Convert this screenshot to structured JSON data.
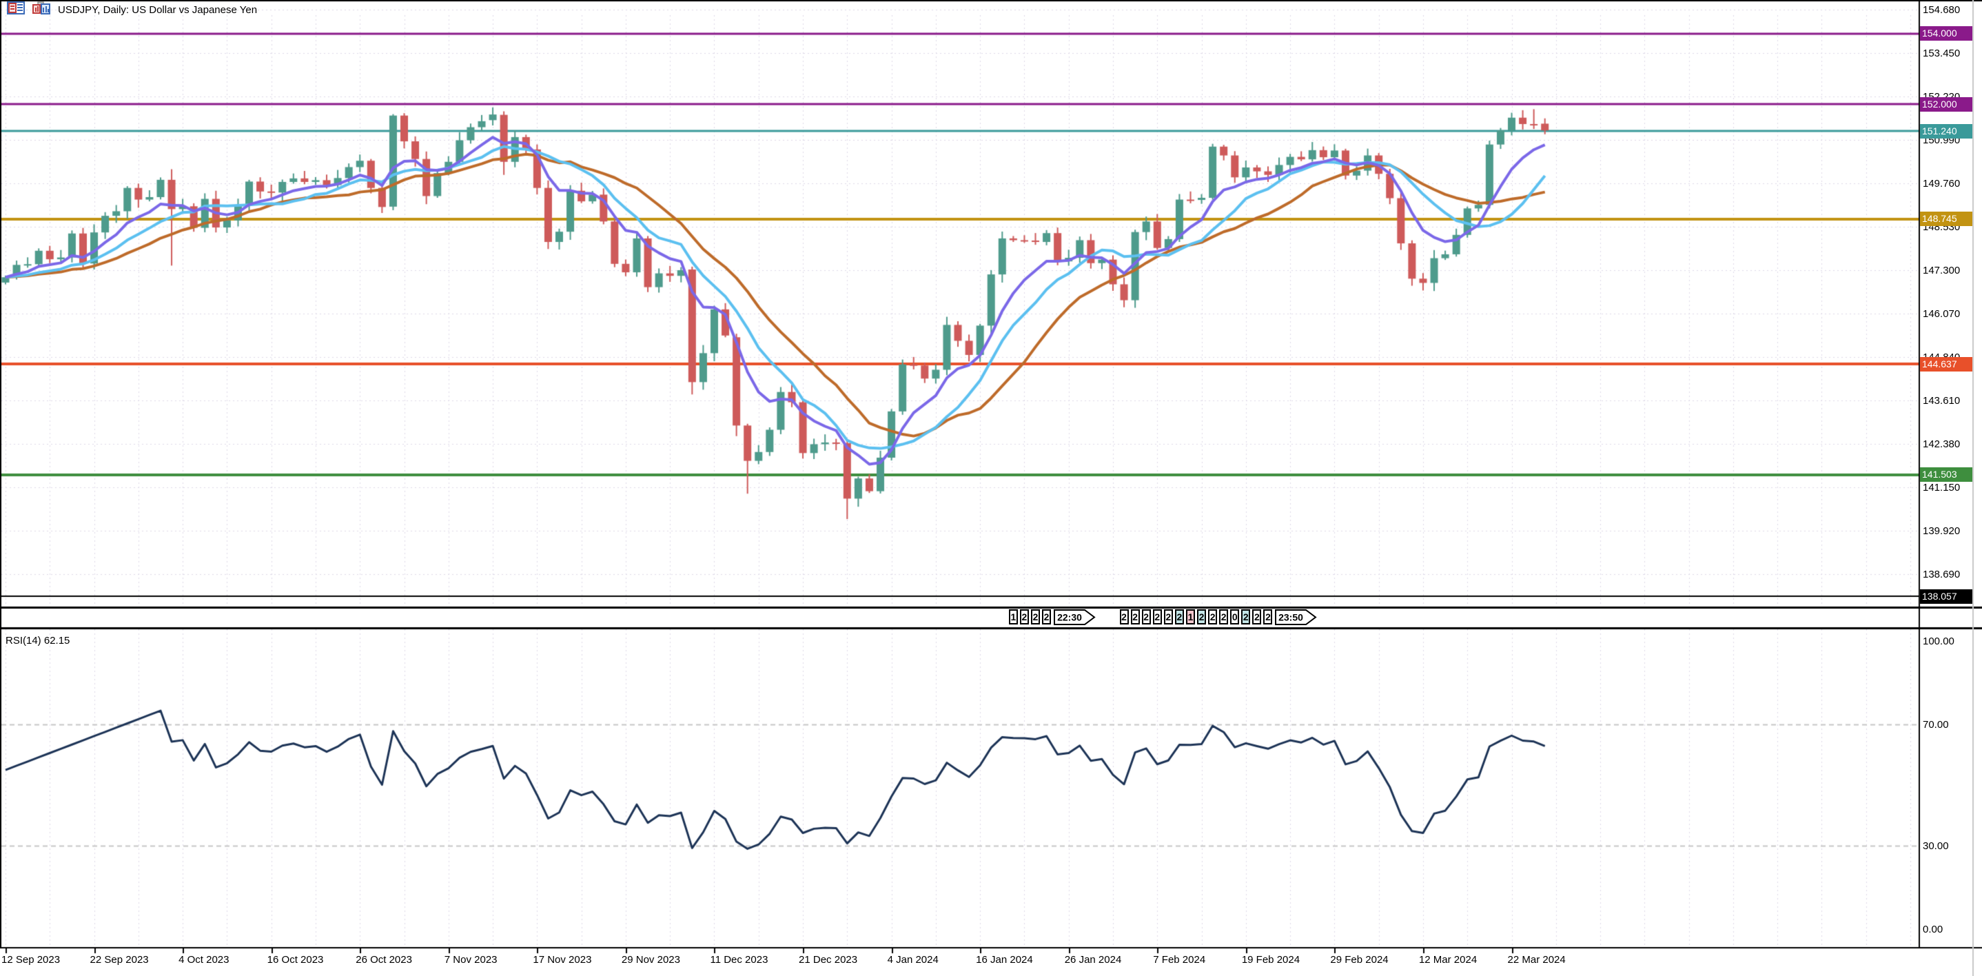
{
  "window": {
    "title": "USDJPY, Daily:  US Dollar vs Japanese Yen",
    "icons": [
      "journal-icon",
      "charts-icon"
    ]
  },
  "indicator_label": "RSI(14) 62.15",
  "chart_data": {
    "type": "candlestick",
    "symbol": "USDJPY",
    "timeframe": "Daily",
    "title": "USDJPY, Daily:  US Dollar vs Japanese Yen",
    "ylim": [
      138.0,
      155.0
    ],
    "grid": true,
    "y_ticks": [
      "154.680",
      "153.450",
      "152.220",
      "150.990",
      "149.760",
      "148.530",
      "147.300",
      "146.070",
      "144.840",
      "143.610",
      "142.380",
      "141.150",
      "139.920",
      "138.690"
    ],
    "x_ticks": [
      "12 Sep 2023",
      "22 Sep 2023",
      "4 Oct 2023",
      "16 Oct 2023",
      "26 Oct 2023",
      "7 Nov 2023",
      "17 Nov 2023",
      "29 Nov 2023",
      "11 Dec 2023",
      "21 Dec 2023",
      "4 Jan 2024",
      "16 Jan 2024",
      "26 Jan 2024",
      "7 Feb 2024",
      "19 Feb 2024",
      "29 Feb 2024",
      "12 Mar 2024",
      "22 Mar 2024"
    ],
    "rsi_ticks": [
      {
        "value": 100,
        "label": "100.00"
      },
      {
        "value": 70,
        "label": "70.00"
      },
      {
        "value": 30,
        "label": "30.00"
      },
      {
        "value": 0,
        "label": "0.00"
      }
    ],
    "rsi_level_lines": [
      70,
      30
    ],
    "hlines": [
      {
        "label": "154.000",
        "price": 154.0,
        "color": "#8a1a8a",
        "width": 3
      },
      {
        "label": "152.000",
        "price": 152.0,
        "color": "#8a1a8a",
        "width": 3
      },
      {
        "label": "151.240",
        "price": 151.24,
        "color": "#3a9a9a",
        "width": 3
      },
      {
        "label": "148.745",
        "price": 148.745,
        "color": "#c29312",
        "width": 4
      },
      {
        "label": "144.637",
        "price": 144.637,
        "color": "#e8502a",
        "width": 4
      },
      {
        "label": "141.503",
        "price": 141.503,
        "color": "#3e8e3e",
        "width": 4
      },
      {
        "label": "138.057",
        "price": 138.057,
        "color": "#000000",
        "width": 2
      }
    ],
    "candles": {
      "start_date": "12 Sep 2023",
      "closes": [
        147.1,
        147.45,
        147.47,
        147.85,
        147.61,
        147.66,
        148.34,
        147.49,
        148.37,
        148.84,
        148.97,
        149.63,
        149.3,
        149.37,
        149.86,
        149.03,
        149.11,
        148.5,
        149.32,
        148.51,
        148.71,
        149.15,
        149.81,
        149.53,
        149.5,
        149.8,
        149.9,
        149.8,
        149.85,
        149.71,
        149.91,
        150.22,
        150.4,
        149.63,
        149.09,
        151.68,
        150.95,
        150.45,
        149.4,
        150.05,
        150.37,
        150.98,
        151.35,
        151.52,
        151.71,
        150.37,
        151.07,
        150.72,
        149.63,
        148.1,
        148.39,
        149.55,
        149.25,
        149.44,
        148.68,
        147.48,
        147.24,
        148.2,
        146.82,
        147.21,
        147.14,
        147.3,
        144.13,
        144.95,
        146.19,
        145.45,
        142.9,
        141.9,
        142.15,
        142.78,
        143.85,
        143.56,
        142.12,
        142.37,
        142.42,
        142.4,
        140.83,
        141.4,
        141.04,
        141.99,
        143.3,
        144.63,
        144.6,
        144.23,
        144.48,
        145.75,
        145.3,
        144.9,
        145.73,
        147.18,
        148.2,
        148.15,
        148.14,
        148.1,
        148.35,
        147.55,
        147.65,
        148.15,
        147.5,
        147.6,
        146.9,
        146.45,
        148.38,
        148.68,
        147.93,
        148.18,
        149.3,
        149.29,
        149.35,
        150.8,
        150.55,
        149.93,
        150.21,
        150.1,
        150.0,
        150.28,
        150.51,
        150.44,
        150.7,
        150.5,
        150.69,
        149.98,
        150.12,
        150.55,
        150.03,
        149.34,
        148.06,
        147.06,
        146.94,
        147.64,
        147.75,
        148.3,
        149.05,
        149.15,
        150.86,
        151.26,
        151.62,
        151.44,
        151.41,
        151.26
      ],
      "special_ohlc": {
        "15": [
          149.86,
          150.16,
          147.43,
          149.03
        ],
        "35": [
          149.1,
          151.72,
          149.0,
          151.68
        ],
        "44": [
          151.55,
          151.91,
          151.4,
          151.71
        ],
        "45": [
          151.7,
          151.8,
          150.0,
          150.37
        ],
        "62": [
          147.32,
          147.4,
          143.78,
          144.13
        ],
        "66": [
          145.4,
          145.5,
          142.6,
          142.9
        ],
        "67": [
          142.9,
          142.95,
          140.97,
          141.9
        ],
        "76": [
          142.4,
          142.48,
          140.25,
          140.83
        ],
        "109": [
          149.35,
          150.88,
          149.3,
          150.8
        ],
        "134": [
          149.15,
          150.97,
          149.05,
          150.86
        ],
        "138": [
          151.44,
          151.86,
          151.3,
          151.41
        ],
        "139": [
          151.45,
          151.6,
          151.15,
          151.26
        ]
      }
    },
    "moving_averages": [
      {
        "name": "fast-ma",
        "method": "ema",
        "period": 7,
        "color": "#7b68e8",
        "width": 4
      },
      {
        "name": "medium-ma",
        "method": "sma",
        "period": 11,
        "color": "#5cc0f0",
        "width": 4
      },
      {
        "name": "slow-ma",
        "method": "sma",
        "period": 17,
        "color": "#be6b2a",
        "width": 4
      }
    ],
    "rsi": {
      "period": 14,
      "current_value": "62.15",
      "color": "#1c3356",
      "width": 3
    },
    "event_markers": [
      {
        "start_bar": 91,
        "flag": "22:30",
        "cells": [
          {
            "t": "1",
            "bg": "white"
          },
          {
            "t": "2",
            "bg": "white"
          },
          {
            "t": "2",
            "bg": "white"
          },
          {
            "t": "2",
            "bg": "white"
          }
        ]
      },
      {
        "start_bar": 101,
        "flag": "23:50",
        "cells": [
          {
            "t": "2",
            "bg": "white"
          },
          {
            "t": "2",
            "bg": "white"
          },
          {
            "t": "2",
            "bg": "white"
          },
          {
            "t": "2",
            "bg": "white"
          },
          {
            "t": "2",
            "bg": "white"
          },
          {
            "t": "2",
            "bg": "teal"
          },
          {
            "t": "1",
            "bg": "pink"
          },
          {
            "t": "2",
            "bg": "teal"
          },
          {
            "t": "2",
            "bg": "white"
          },
          {
            "t": "2",
            "bg": "white"
          },
          {
            "t": "0",
            "bg": "white"
          },
          {
            "t": "2",
            "bg": "teal"
          },
          {
            "t": "2",
            "bg": "white"
          },
          {
            "t": "2",
            "bg": "white"
          }
        ]
      }
    ],
    "colors": {
      "background": "#ffffff",
      "bull_candle": "#4e9b8c",
      "bear_candle": "#ce5a5a",
      "grid": "#ded9e8",
      "rsi_level": "#c6c6c6",
      "frame": "#000000",
      "window_edge": "#c8c8c8",
      "marker_teal_bg": "#c2e4e6",
      "marker_pink_bg": "#f3c6cd"
    }
  }
}
